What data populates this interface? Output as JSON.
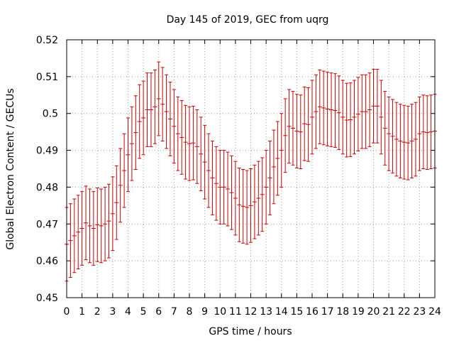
{
  "chart_data": {
    "type": "scatter",
    "title": "Day 145 of 2019, GEC from uqrg",
    "xlabel": "GPS time / hours",
    "ylabel": "Global Electron Content / GECUs",
    "xlim": [
      0,
      24
    ],
    "ylim": [
      0.45,
      0.52
    ],
    "grid": true,
    "x_ticks": [
      0,
      1,
      2,
      3,
      4,
      5,
      6,
      7,
      8,
      9,
      10,
      11,
      12,
      13,
      14,
      15,
      16,
      17,
      18,
      19,
      20,
      21,
      22,
      23,
      24
    ],
    "y_ticks": [
      0.45,
      0.46,
      0.47,
      0.48,
      0.49,
      0.5,
      0.51,
      0.52
    ],
    "y_tick_labels": [
      "0.45",
      "0.46",
      "0.47",
      "0.48",
      "0.49",
      "0.5",
      "0.51",
      "0.52"
    ],
    "color": "#cc0000",
    "error_half_width": 0.01,
    "x": [
      0.0,
      0.25,
      0.5,
      0.75,
      1.0,
      1.25,
      1.5,
      1.75,
      2.0,
      2.25,
      2.5,
      2.75,
      3.0,
      3.25,
      3.5,
      3.75,
      4.0,
      4.25,
      4.5,
      4.75,
      5.0,
      5.25,
      5.5,
      5.75,
      6.0,
      6.25,
      6.5,
      6.75,
      7.0,
      7.25,
      7.5,
      7.75,
      8.0,
      8.25,
      8.5,
      8.75,
      9.0,
      9.25,
      9.5,
      9.75,
      10.0,
      10.25,
      10.5,
      10.75,
      11.0,
      11.25,
      11.5,
      11.75,
      12.0,
      12.25,
      12.5,
      12.75,
      13.0,
      13.25,
      13.5,
      13.75,
      14.0,
      14.25,
      14.5,
      14.75,
      15.0,
      15.25,
      15.5,
      15.75,
      16.0,
      16.25,
      16.5,
      16.75,
      17.0,
      17.25,
      17.5,
      17.75,
      18.0,
      18.25,
      18.5,
      18.75,
      19.0,
      19.25,
      19.5,
      19.75,
      20.0,
      20.25,
      20.5,
      20.75,
      21.0,
      21.25,
      21.5,
      21.75,
      22.0,
      22.25,
      22.5,
      22.75,
      23.0,
      23.25,
      23.5,
      23.75,
      24.0
    ],
    "y": [
      0.4645,
      0.4655,
      0.4668,
      0.4678,
      0.4688,
      0.4703,
      0.4695,
      0.4688,
      0.4698,
      0.4695,
      0.47,
      0.4708,
      0.4728,
      0.4758,
      0.4805,
      0.4845,
      0.4888,
      0.4918,
      0.4948,
      0.4978,
      0.4988,
      0.501,
      0.501,
      0.5018,
      0.504,
      0.5025,
      0.5005,
      0.4985,
      0.4965,
      0.4945,
      0.4935,
      0.4922,
      0.4918,
      0.492,
      0.491,
      0.489,
      0.4868,
      0.4845,
      0.4825,
      0.481,
      0.48,
      0.48,
      0.4795,
      0.4785,
      0.477,
      0.4752,
      0.4748,
      0.4745,
      0.475,
      0.476,
      0.477,
      0.478,
      0.48,
      0.4825,
      0.4855,
      0.4878,
      0.49,
      0.494,
      0.4965,
      0.496,
      0.4952,
      0.495,
      0.4972,
      0.497,
      0.499,
      0.5005,
      0.5018,
      0.5015,
      0.5012,
      0.501,
      0.5008,
      0.5002,
      0.499,
      0.4982,
      0.4983,
      0.499,
      0.4998,
      0.5005,
      0.5005,
      0.501,
      0.502,
      0.502,
      0.499,
      0.496,
      0.4945,
      0.4938,
      0.493,
      0.4925,
      0.4922,
      0.492,
      0.4925,
      0.493,
      0.4945,
      0.495,
      0.4948,
      0.495,
      0.4952
    ]
  }
}
